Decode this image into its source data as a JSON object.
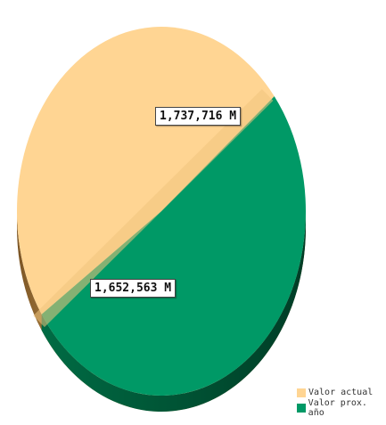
{
  "chart_data": {
    "type": "pie",
    "series": [
      {
        "name": "Valor actual",
        "value": 1652563,
        "label": "1,652,563 M",
        "color": "#FFD593"
      },
      {
        "name": "Valor prox. año",
        "value": 1737716,
        "label": "1,737,716 M",
        "color": "#009966"
      }
    ],
    "legend_position": "bottom-right",
    "style": "3d"
  }
}
